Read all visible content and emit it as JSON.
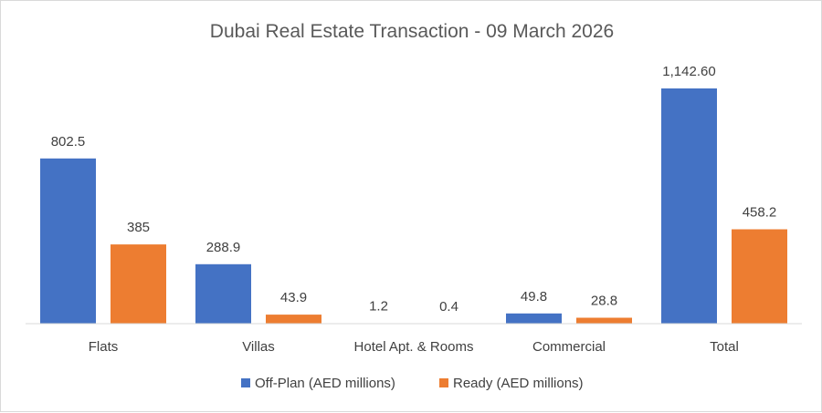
{
  "chart_data": {
    "type": "bar",
    "title": "Dubai Real Estate Transaction - 09 March 2026",
    "categories": [
      "Flats",
      "Villas",
      "Hotel Apt. & Rooms",
      "Commercial",
      "Total"
    ],
    "series": [
      {
        "name": "Off-Plan (AED millions)",
        "color": "#4472C4",
        "values": [
          802.5,
          288.9,
          1.2,
          49.8,
          1142.6
        ],
        "labels": [
          "802.5",
          "288.9",
          "1.2",
          "49.8",
          "1,142.60"
        ]
      },
      {
        "name": "Ready (AED millions)",
        "color": "#ED7D31",
        "values": [
          385,
          43.9,
          0.4,
          28.8,
          458.2
        ],
        "labels": [
          "385",
          "43.9",
          "0.4",
          "28.8",
          "458.2"
        ]
      }
    ],
    "ylim": [
      0,
      1240
    ],
    "grid": false,
    "legend_position": "bottom",
    "xlabel": "",
    "ylabel": ""
  }
}
